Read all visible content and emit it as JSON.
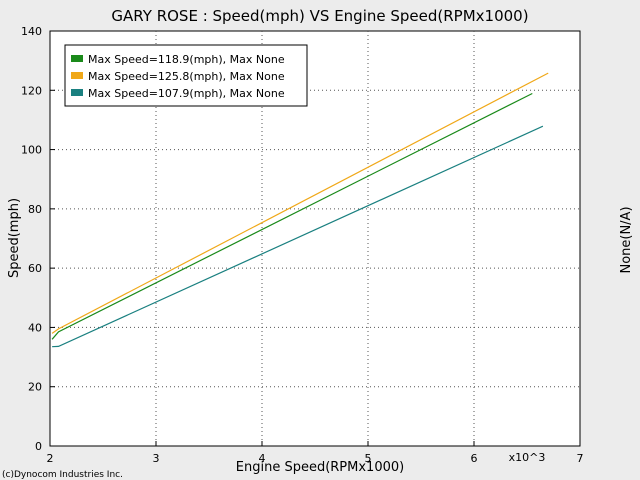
{
  "chart_data": {
    "type": "line",
    "title": "GARY ROSE  : Speed(mph) VS Engine Speed(RPMx1000)",
    "xlabel": "Engine Speed(RPMx1000)",
    "ylabel": "Speed(mph)",
    "y2label": "None(N/A)",
    "x_multiplier_label": "x10^3",
    "credit": "(c)Dynocom Industries Inc.",
    "xlim": [
      2,
      7
    ],
    "ylim": [
      0,
      140
    ],
    "x_ticks": [
      2,
      3,
      4,
      5,
      6,
      7
    ],
    "y_ticks": [
      0,
      20,
      40,
      60,
      80,
      100,
      120,
      140
    ],
    "grid": true,
    "legend_position": "top-left",
    "series": [
      {
        "name": "Max Speed=118.9(mph), Max None",
        "color": "#1a8a1a",
        "points": [
          [
            2.02,
            36.0
          ],
          [
            2.08,
            38.5
          ],
          [
            6.55,
            118.9
          ]
        ]
      },
      {
        "name": "Max Speed=125.8(mph), Max None",
        "color": "#f0a818",
        "points": [
          [
            2.02,
            38.0
          ],
          [
            2.08,
            39.5
          ],
          [
            6.7,
            125.8
          ]
        ]
      },
      {
        "name": "Max Speed=107.9(mph), Max None",
        "color": "#1a8080",
        "points": [
          [
            2.02,
            33.5
          ],
          [
            2.08,
            33.6
          ],
          [
            6.65,
            107.9
          ]
        ]
      }
    ]
  }
}
